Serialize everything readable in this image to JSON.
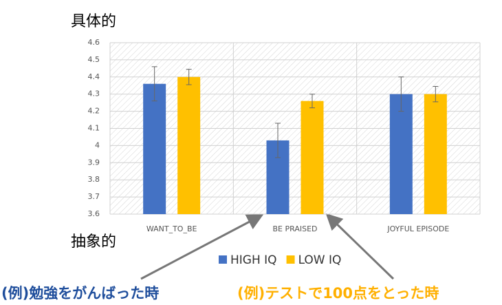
{
  "chart_data": {
    "type": "bar",
    "categories": [
      "WANT_TO_BE",
      "BE PRAISED",
      "JOYFUL EPISODE"
    ],
    "series": [
      {
        "name": "HIGH IQ",
        "color": "#4472c4",
        "values": [
          4.36,
          4.03,
          4.3
        ],
        "errors": [
          0.1,
          0.1,
          0.1
        ]
      },
      {
        "name": "LOW IQ",
        "color": "#ffc000",
        "values": [
          4.4,
          4.26,
          4.3
        ],
        "errors": [
          0.045,
          0.04,
          0.045
        ]
      }
    ],
    "ylim": [
      3.6,
      4.6
    ],
    "yticks": [
      3.6,
      3.7,
      3.8,
      3.9,
      4,
      4.1,
      4.2,
      4.3,
      4.4,
      4.5,
      4.6
    ],
    "grid": true,
    "legend": "bottom",
    "annotations": [
      "具体的",
      "抽象的",
      "(例)勉強をがんばった時",
      "(例)テストで100点をとった時"
    ]
  }
}
